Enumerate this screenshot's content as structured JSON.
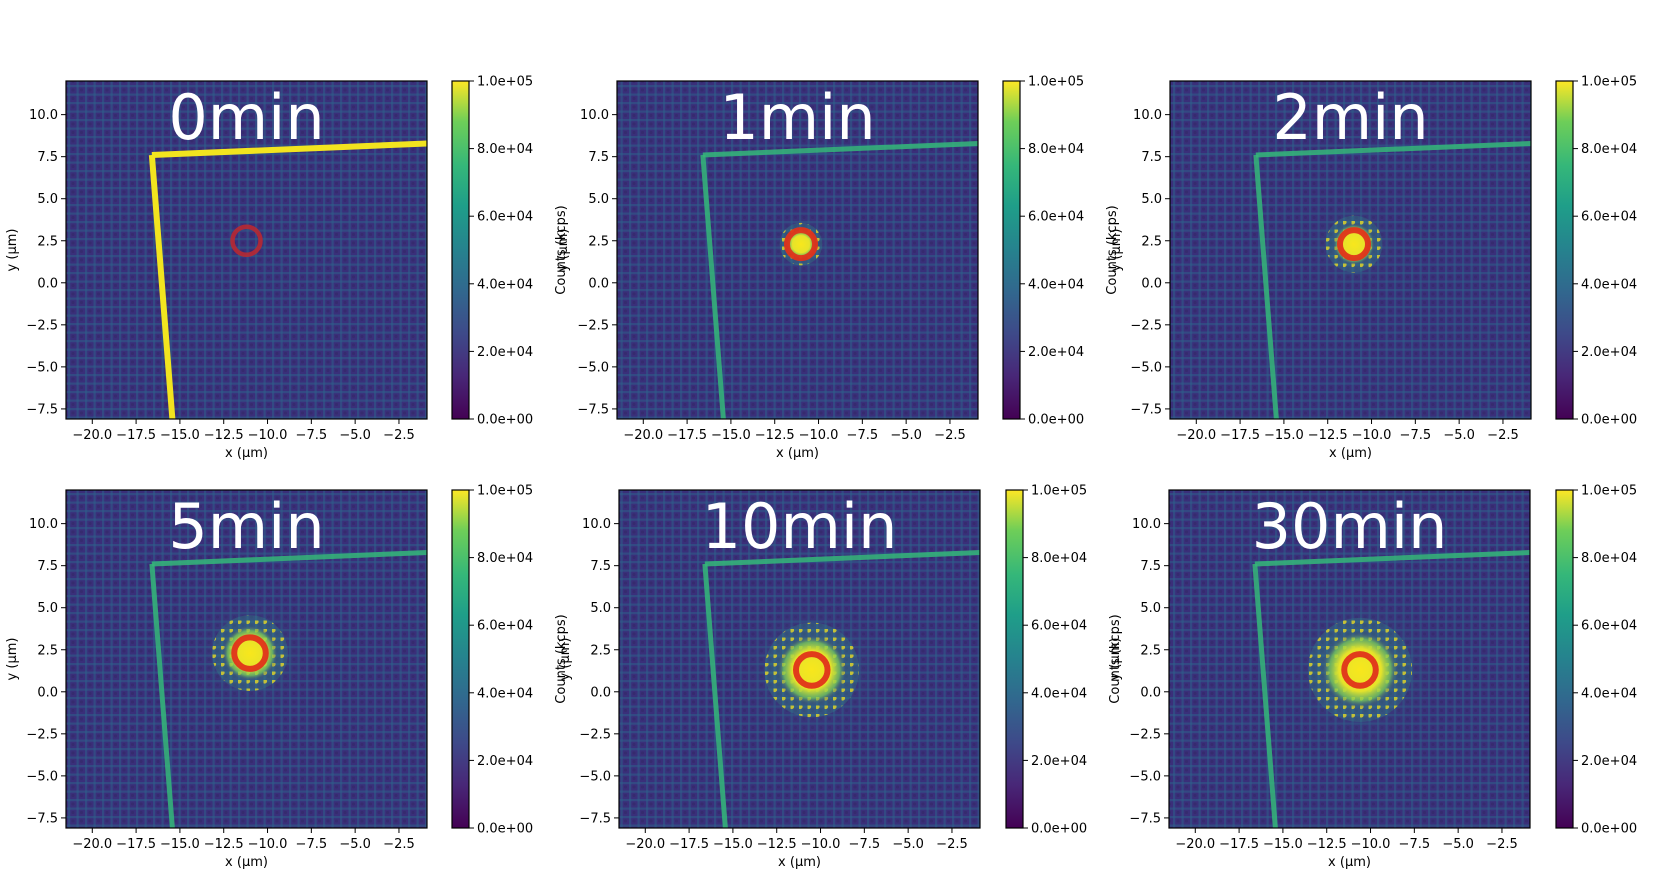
{
  "chart_data": {
    "type": "heatmap",
    "figure_title": "",
    "xlabel": "x (μm)",
    "ylabel": "y (μm)",
    "colorbar_label": "Counts (kcps)",
    "colormap": "viridis",
    "colors": {
      "background": "#3b2b78",
      "grid_light": "#2f6f8e",
      "bright": "#f4e61e",
      "marker": "#e0331a",
      "marker_faded": "#c0282e"
    },
    "xlim": [
      -21.5,
      -0.9
    ],
    "ylim": [
      -8.1,
      12.0
    ],
    "xticks": [
      -20.0,
      -17.5,
      -15.0,
      -12.5,
      -10.0,
      -7.5,
      -5.0,
      -2.5
    ],
    "xtick_labels": [
      "−20.0",
      "−17.5",
      "−15.0",
      "−12.5",
      "−10.0",
      "−7.5",
      "−5.0",
      "−2.5"
    ],
    "yticks": [
      10.0,
      7.5,
      5.0,
      2.5,
      0.0,
      -2.5,
      -5.0,
      -7.5
    ],
    "ytick_labels": [
      "10.0",
      "7.5",
      "5.0",
      "2.5",
      "0.0",
      "−2.5",
      "−5.0",
      "−7.5"
    ],
    "colorbar_range": [
      0.0,
      100000.0
    ],
    "colorbar_ticks": [
      100000.0,
      80000.0,
      60000.0,
      40000.0,
      20000.0,
      0.0
    ],
    "colorbar_tick_labels": [
      "1.0e+05",
      "8.0e+04",
      "6.0e+04",
      "4.0e+04",
      "2.0e+04",
      "0.0e+00"
    ],
    "panels": [
      {
        "title": "0min",
        "marker_center": [
          -11.2,
          2.5
        ],
        "marker_radius_um": 0.8,
        "spot_radius_um": 0.0,
        "edge_intensity": "very bright"
      },
      {
        "title": "1min",
        "marker_center": [
          -11.0,
          2.3
        ],
        "marker_radius_um": 0.8,
        "spot_radius_um": 0.9,
        "edge_intensity": "medium"
      },
      {
        "title": "2min",
        "marker_center": [
          -11.0,
          2.3
        ],
        "marker_radius_um": 0.8,
        "spot_radius_um": 1.2,
        "edge_intensity": "medium"
      },
      {
        "title": "5min",
        "marker_center": [
          -11.0,
          2.3
        ],
        "marker_radius_um": 0.9,
        "spot_radius_um": 1.6,
        "edge_intensity": "medium"
      },
      {
        "title": "10min",
        "marker_center": [
          -10.5,
          1.3
        ],
        "marker_radius_um": 0.9,
        "spot_radius_um": 2.0,
        "edge_intensity": "medium"
      },
      {
        "title": "30min",
        "marker_center": [
          -10.6,
          1.3
        ],
        "marker_radius_um": 0.9,
        "spot_radius_um": 2.2,
        "edge_intensity": "medium"
      }
    ]
  }
}
